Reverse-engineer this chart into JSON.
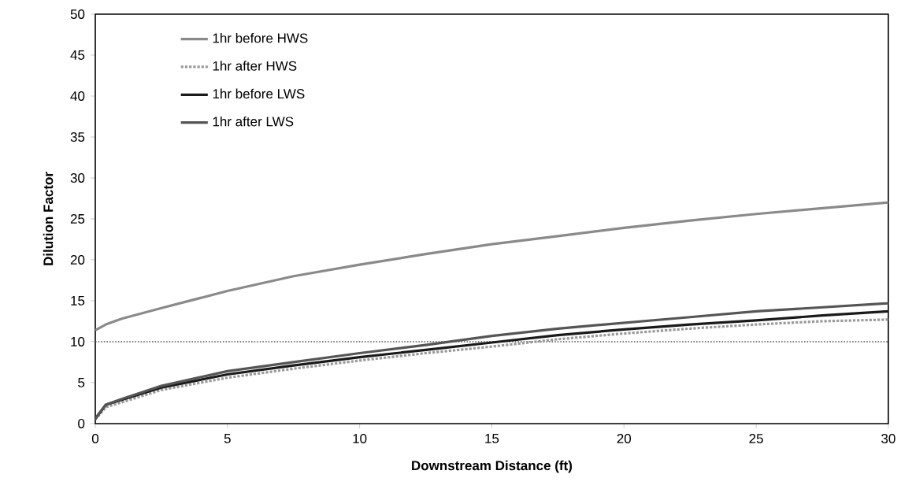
{
  "chart_data": {
    "type": "line",
    "xlabel": "Downstream Distance (ft)",
    "ylabel": "Dilution Factor",
    "x": [
      0,
      0.4,
      1,
      2.5,
      5,
      7.5,
      10,
      12.5,
      15,
      17.5,
      20,
      22.5,
      25,
      27.5,
      30
    ],
    "series": [
      {
        "name": "1hr before HWS",
        "color": "#8a8a8a",
        "values": [
          11.4,
          12.1,
          12.8,
          14.1,
          16.2,
          18.0,
          19.4,
          20.7,
          21.9,
          22.9,
          23.9,
          24.8,
          25.6,
          26.3,
          27.0
        ]
      },
      {
        "name": "1hr after HWS",
        "color": "#9a9a9a",
        "line_style": "dotted",
        "values": [
          0.5,
          2.0,
          2.6,
          4.1,
          5.6,
          6.7,
          7.7,
          8.6,
          9.4,
          10.3,
          11.0,
          11.6,
          12.1,
          12.5,
          12.7
        ]
      },
      {
        "name": "1hr before LWS",
        "color": "#1a1a1a",
        "values": [
          0.6,
          2.3,
          2.9,
          4.4,
          6.0,
          7.1,
          8.1,
          9.0,
          9.9,
          10.8,
          11.5,
          12.1,
          12.6,
          13.2,
          13.7
        ]
      },
      {
        "name": "1hr after LWS",
        "color": "#555555",
        "values": [
          0.6,
          2.3,
          3.0,
          4.6,
          6.4,
          7.5,
          8.6,
          9.6,
          10.7,
          11.6,
          12.3,
          13.0,
          13.7,
          14.2,
          14.7
        ]
      }
    ],
    "ref_lines": [
      {
        "axis": "y",
        "value": 10,
        "color": "#555555",
        "line_style": "dotted"
      }
    ],
    "xlim": [
      0,
      30
    ],
    "xticks": [
      0,
      5,
      10,
      15,
      20,
      25,
      30
    ],
    "ylim": [
      0,
      50
    ],
    "yticks": [
      0,
      5,
      10,
      15,
      20,
      25,
      30,
      35,
      40,
      45,
      50
    ],
    "line_style": "solid",
    "legend": "top left",
    "grid": false
  }
}
